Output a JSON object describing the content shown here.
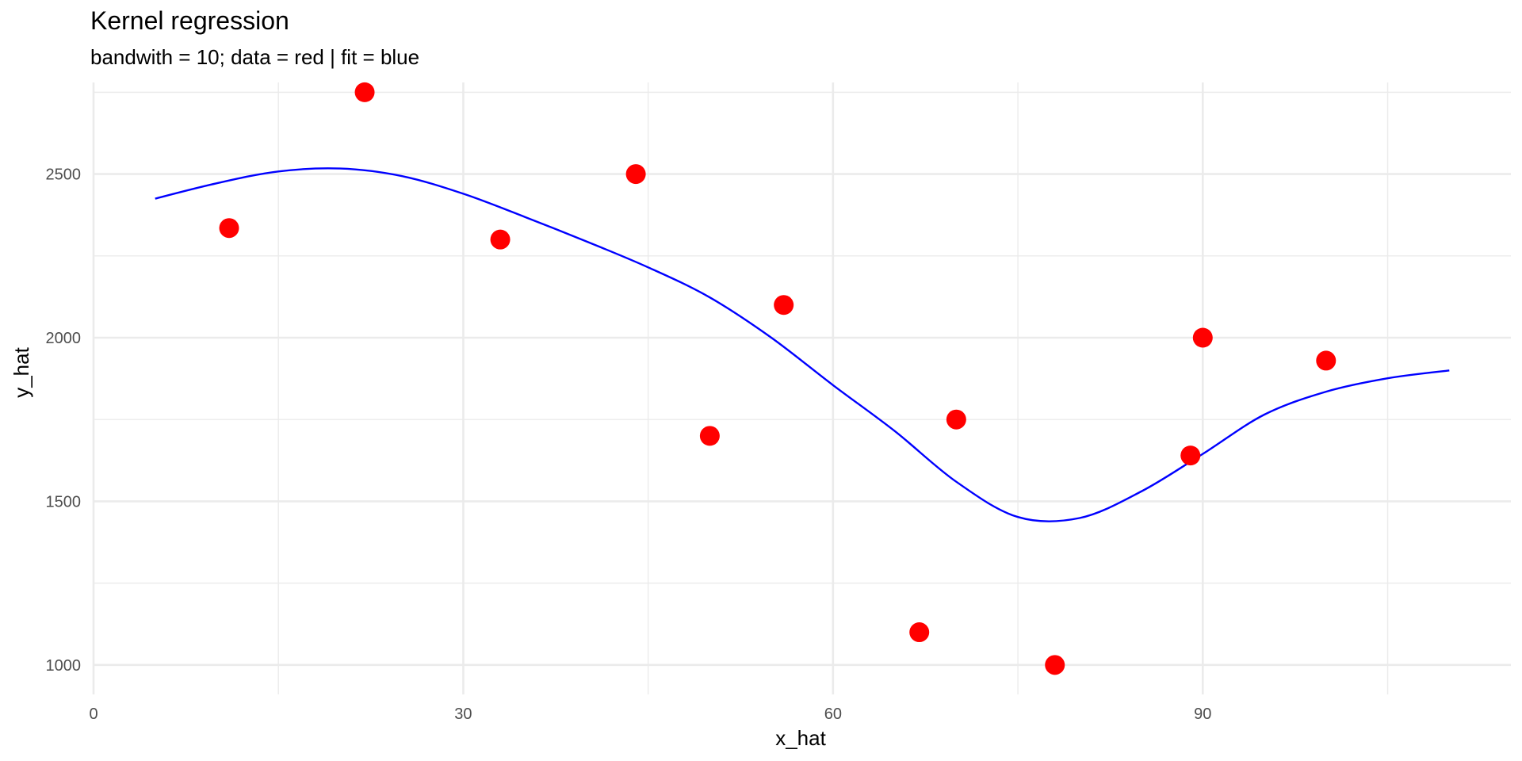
{
  "chart_data": {
    "type": "scatter",
    "title": "Kernel regression",
    "subtitle": "bandwith = 10; data = red | fit = blue",
    "xlabel": "x_hat",
    "ylabel": "y_hat",
    "xlim": [
      0,
      115
    ],
    "ylim": [
      910,
      2780
    ],
    "x_ticks": [
      0,
      30,
      60,
      90
    ],
    "x_minor_ticks": [
      15,
      45,
      75,
      105
    ],
    "y_ticks": [
      1000,
      1500,
      2000,
      2500
    ],
    "y_minor_ticks": [
      1250,
      1750,
      2250,
      2750
    ],
    "grid": true,
    "legend": "none",
    "colors": {
      "data": "#ff0000",
      "fit": "#0000ff",
      "grid": "#ebebeb"
    },
    "series": [
      {
        "type": "scatter",
        "role": "data",
        "x": [
          11,
          22,
          33,
          44,
          50,
          56,
          67,
          70,
          78,
          89,
          90,
          100
        ],
        "y": [
          2335,
          2750,
          2300,
          2500,
          1700,
          2100,
          1100,
          1750,
          1000,
          1640,
          2000,
          1930
        ]
      },
      {
        "type": "line",
        "role": "fit",
        "x": [
          5,
          10,
          15,
          20,
          25,
          30,
          35,
          40,
          45,
          50,
          55,
          60,
          65,
          70,
          75,
          80,
          85,
          90,
          95,
          100,
          105,
          110
        ],
        "y": [
          2425,
          2472,
          2508,
          2517,
          2494,
          2440,
          2369,
          2294,
          2215,
          2123,
          2000,
          1855,
          1715,
          1560,
          1452,
          1449,
          1530,
          1645,
          1765,
          1835,
          1876,
          1900
        ]
      }
    ]
  }
}
